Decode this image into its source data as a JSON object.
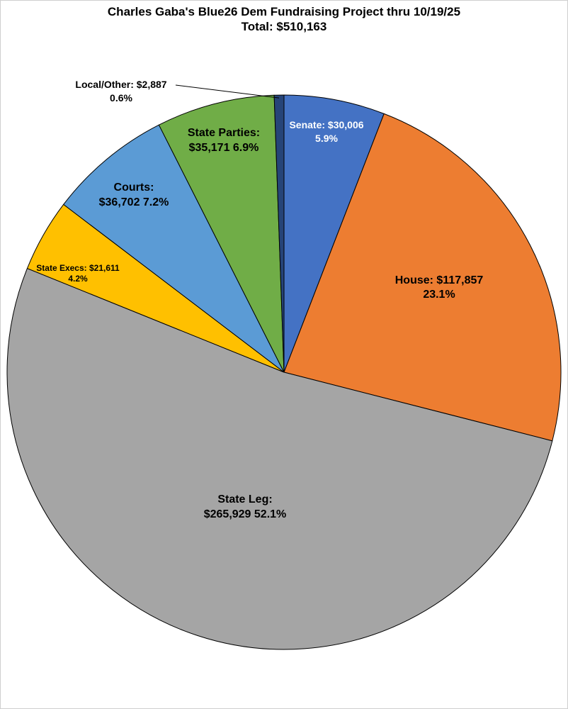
{
  "chart_data": {
    "type": "pie",
    "title": "Charles Gaba's Blue26 Dem Fundraising Project thru 10/19/25",
    "subtitle": "Total: $510,163",
    "slices": [
      {
        "label": "Senate: $30,006",
        "value": 30006,
        "percent": "5.9%",
        "color": "#4472c4",
        "text_color": "#ffffff"
      },
      {
        "label": "House: $117,857",
        "value": 117857,
        "percent": "23.1%",
        "color": "#ed7d31",
        "text_color": "#000000"
      },
      {
        "label": "State Leg:",
        "value_text": "$265,929 52.1%",
        "value": 265929,
        "percent": "52.1%",
        "color": "#a5a5a5",
        "text_color": "#000000"
      },
      {
        "label": "State Execs: $21,611",
        "value": 21611,
        "percent": "4.2%",
        "color": "#ffc000",
        "text_color": "#000000"
      },
      {
        "label": "Courts:",
        "value_text": "$36,702 7.2%",
        "value": 36702,
        "percent": "7.2%",
        "color": "#5b9bd5",
        "text_color": "#000000"
      },
      {
        "label": "State Parties:",
        "value_text": "$35,171 6.9%",
        "value": 35171,
        "percent": "6.9%",
        "color": "#70ad47",
        "text_color": "#000000"
      },
      {
        "label": "Local/Other: $2,887",
        "value": 2887,
        "percent": "0.6%",
        "color": "#264478",
        "text_color": "#000000"
      }
    ],
    "start_angle": "12 o'clock",
    "direction": "clockwise",
    "legend": "none",
    "slice_border_color": "#000000"
  }
}
